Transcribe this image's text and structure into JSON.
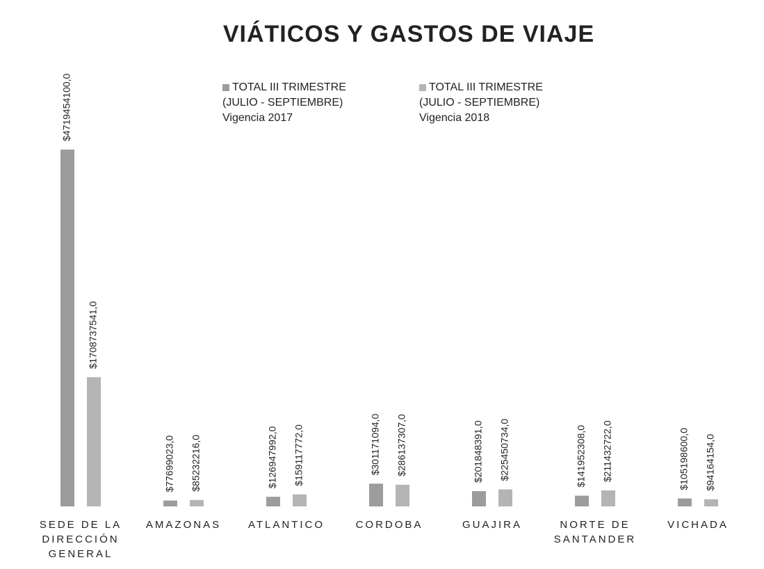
{
  "chart_data": {
    "type": "bar",
    "title": "VIÁTICOS  Y GASTOS DE VIAJE",
    "categories": [
      "SEDE DE LA DIRECCIÓN GENERAL",
      "AMAZONAS",
      "ATLANTICO",
      "CORDOBA",
      "GUAJIRA",
      "NORTE DE SANTANDER",
      "VICHADA"
    ],
    "series": [
      {
        "name": "TOTAL III TRIMESTRE (JULIO - SEPTIEMBRE) Vigencia 2017",
        "color": "#9c9c9c",
        "values": [
          4719454100,
          77699023,
          126947992,
          301171094,
          201848391,
          141952308,
          105198600
        ],
        "value_labels": [
          "$4719454100,0",
          "$77699023,0",
          "$126947992,0",
          "$301171094,0",
          "$201848391,0",
          "$141952308,0",
          "$105198600,0"
        ]
      },
      {
        "name": "TOTAL III TRIMESTRE (JULIO - SEPTIEMBRE) Vigencia 2018",
        "color": "#b4b4b4",
        "values": [
          1708737541,
          85232216,
          159117772,
          286137307,
          225450734,
          211432722,
          94164154
        ],
        "value_labels": [
          "$1708737541,0",
          "$85232216,0",
          "$159117772,0",
          "$286137307,0",
          "$225450734,0",
          "$211432722,0",
          "$94164154,0"
        ]
      }
    ]
  }
}
